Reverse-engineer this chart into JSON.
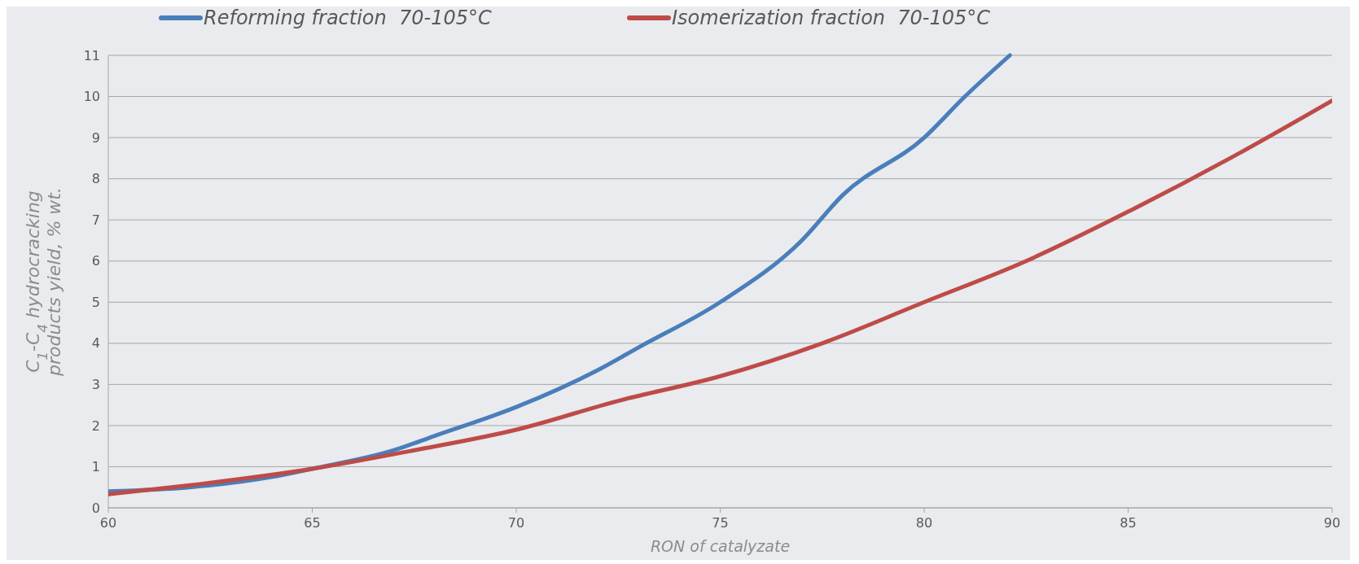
{
  "chart_data": {
    "type": "line",
    "xlabel": "RON of catalyzate",
    "ylabel": "C$_{1}$-C$_{4}$ hydrocracking products yield, % wt.",
    "xlim": [
      60,
      90
    ],
    "xticks": [
      60,
      65,
      70,
      75,
      80,
      85,
      90
    ],
    "ylim": [
      0,
      11
    ],
    "yticks": [
      0,
      1,
      2,
      3,
      4,
      5,
      6,
      7,
      8,
      9,
      10,
      11
    ],
    "grid": "y",
    "legend": "top",
    "marker": "none",
    "line_style": "solid",
    "series": [
      {
        "name": "Reforming fraction  70-105°C",
        "color": "#4a7ebb",
        "x": [
          60,
          62,
          64,
          65,
          67,
          68,
          70,
          72,
          73,
          75,
          77,
          78,
          80,
          81,
          82.1
        ],
        "values": [
          0.4,
          0.5,
          0.75,
          0.95,
          1.4,
          1.75,
          2.45,
          3.35,
          3.9,
          5.0,
          6.5,
          7.6,
          9.0,
          10.0,
          11
        ]
      },
      {
        "name": "Isomerization fraction  70-105°C",
        "color": "#be4b48",
        "x": [
          60,
          62,
          65,
          67.5,
          70,
          72.5,
          75,
          77.5,
          80,
          82.5,
          85,
          87.5,
          90
        ],
        "values": [
          0.33,
          0.55,
          0.95,
          1.4,
          1.9,
          2.6,
          3.2,
          4.0,
          5.0,
          6.0,
          7.2,
          8.5,
          9.9
        ]
      }
    ]
  }
}
